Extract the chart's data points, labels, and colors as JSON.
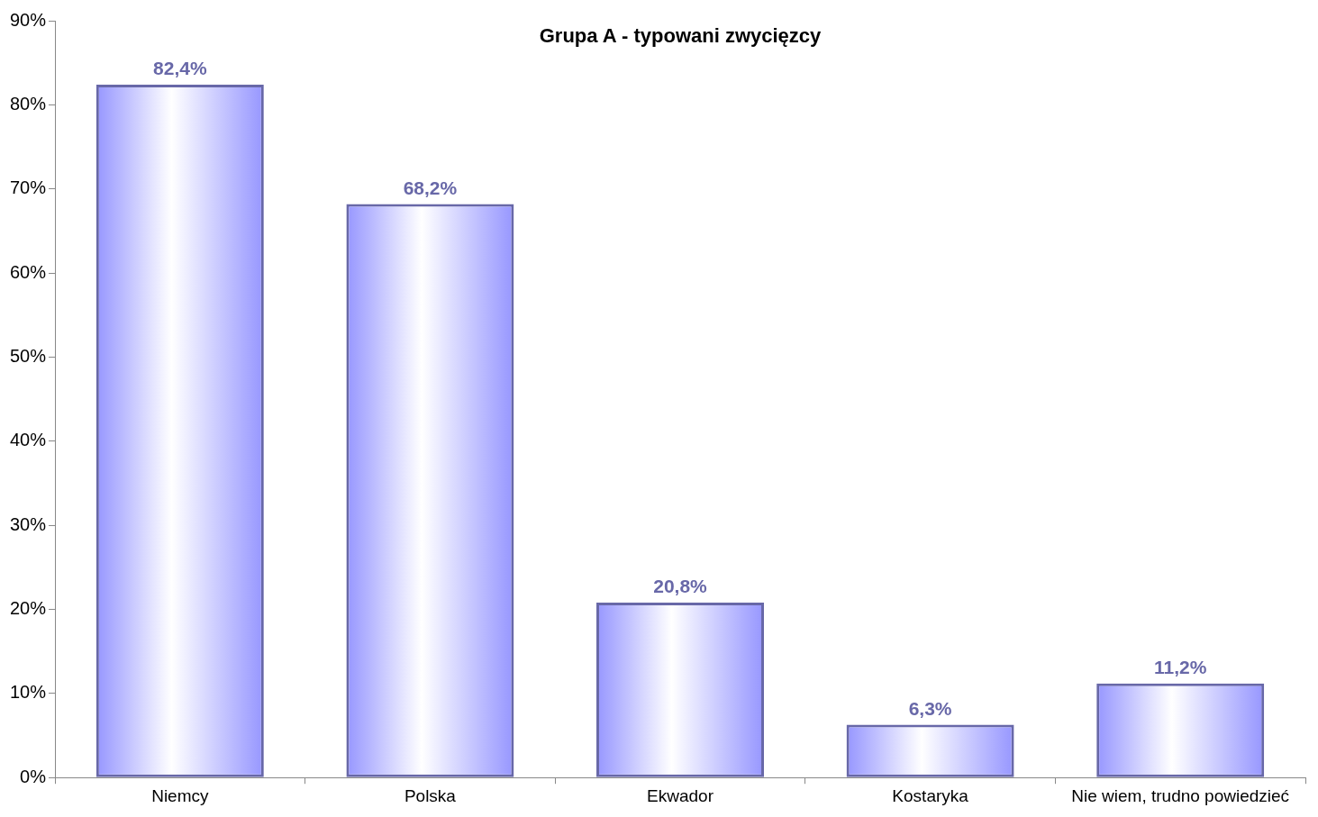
{
  "chart_data": {
    "type": "bar",
    "title": "Grupa A - typowani zwycięzcy",
    "categories": [
      "Niemcy",
      "Polska",
      "Ekwador",
      "Kostaryka",
      "Nie wiem, trudno powiedzieć"
    ],
    "values": [
      82.4,
      68.2,
      20.8,
      6.3,
      11.2
    ],
    "value_labels": [
      "82,4%",
      "68,2%",
      "20,8%",
      "6,3%",
      "11,2%"
    ],
    "color": "#6868a8",
    "ylim": [
      0,
      90
    ],
    "yticks": [
      {
        "value": 0,
        "label": "0%"
      },
      {
        "value": 10,
        "label": "10%"
      },
      {
        "value": 20,
        "label": "20%"
      },
      {
        "value": 30,
        "label": "30%"
      },
      {
        "value": 40,
        "label": "40%"
      },
      {
        "value": 50,
        "label": "50%"
      },
      {
        "value": 60,
        "label": "60%"
      },
      {
        "value": 70,
        "label": "70%"
      },
      {
        "value": 80,
        "label": "80%"
      },
      {
        "value": 90,
        "label": "90%"
      }
    ],
    "grid": false,
    "legend": false
  }
}
